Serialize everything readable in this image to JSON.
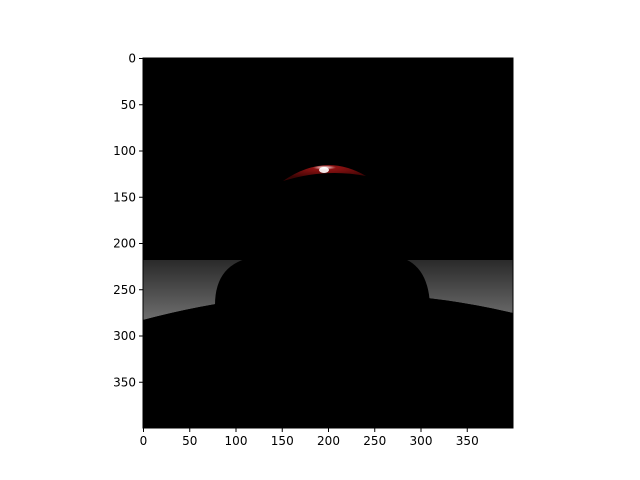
{
  "image": {
    "description_free_note": "",
    "x_axis": {
      "range": [
        0,
        400
      ],
      "ticks": [
        "0",
        "50",
        "100",
        "150",
        "200",
        "250",
        "300",
        "350"
      ],
      "tick_values": [
        0,
        50,
        100,
        150,
        200,
        250,
        300,
        350
      ]
    },
    "y_axis": {
      "range": [
        0,
        400
      ],
      "inverted": true,
      "ticks": [
        "0",
        "50",
        "100",
        "150",
        "200",
        "250",
        "300",
        "350"
      ],
      "tick_values": [
        0,
        50,
        100,
        150,
        200,
        250,
        300,
        350
      ]
    },
    "colors": {
      "background": "#000000",
      "floor_light": "#6a6a6a",
      "floor_dark": "#2e2e2e",
      "highlight": "#8a1010",
      "specular": "#ffffff",
      "axes": "#000000",
      "page": "#ffffff"
    }
  }
}
